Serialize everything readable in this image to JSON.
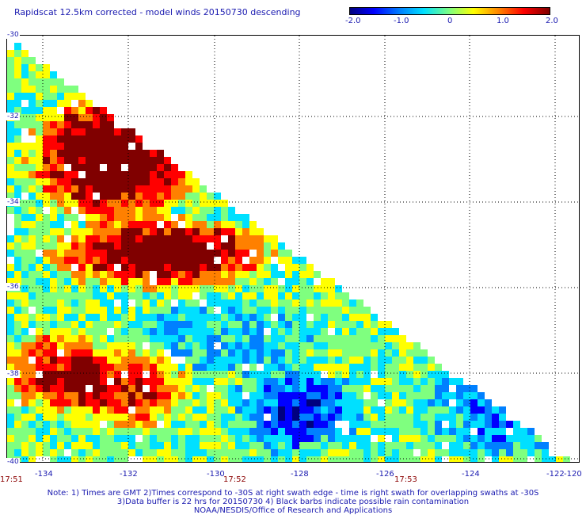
{
  "title": "Rapidscat 12.5km corrected - model winds 20150730 descending",
  "colorbar": {
    "ticks": [
      "-2.0",
      "-1.0",
      "0",
      "1.0",
      "2.0"
    ],
    "colors": [
      "#00007f",
      "#0000ff",
      "#0080ff",
      "#00e0ff",
      "#7fff7f",
      "#ffff00",
      "#ff8000",
      "#ff0000",
      "#800000"
    ]
  },
  "axes": {
    "lat_labels": [
      "-30",
      "-32",
      "-34",
      "-36",
      "-38",
      "-40"
    ],
    "lon_labels": [
      "-134",
      "-132",
      "-130",
      "-128",
      "-126",
      "-124",
      "-122",
      "-120"
    ]
  },
  "times": [
    "17:51",
    "17:52",
    "17:53"
  ],
  "notes": [
    "Note: 1) Times are GMT 2)Times correspond to -30S at right swath edge - time is right swath for overlapping swaths at -30S",
    "3)Data buffer is 22 hrs for 20150730 4) Black barbs indicate possible rain contamination",
    "NOAA/NESDIS/Office of Research and Applications"
  ]
}
